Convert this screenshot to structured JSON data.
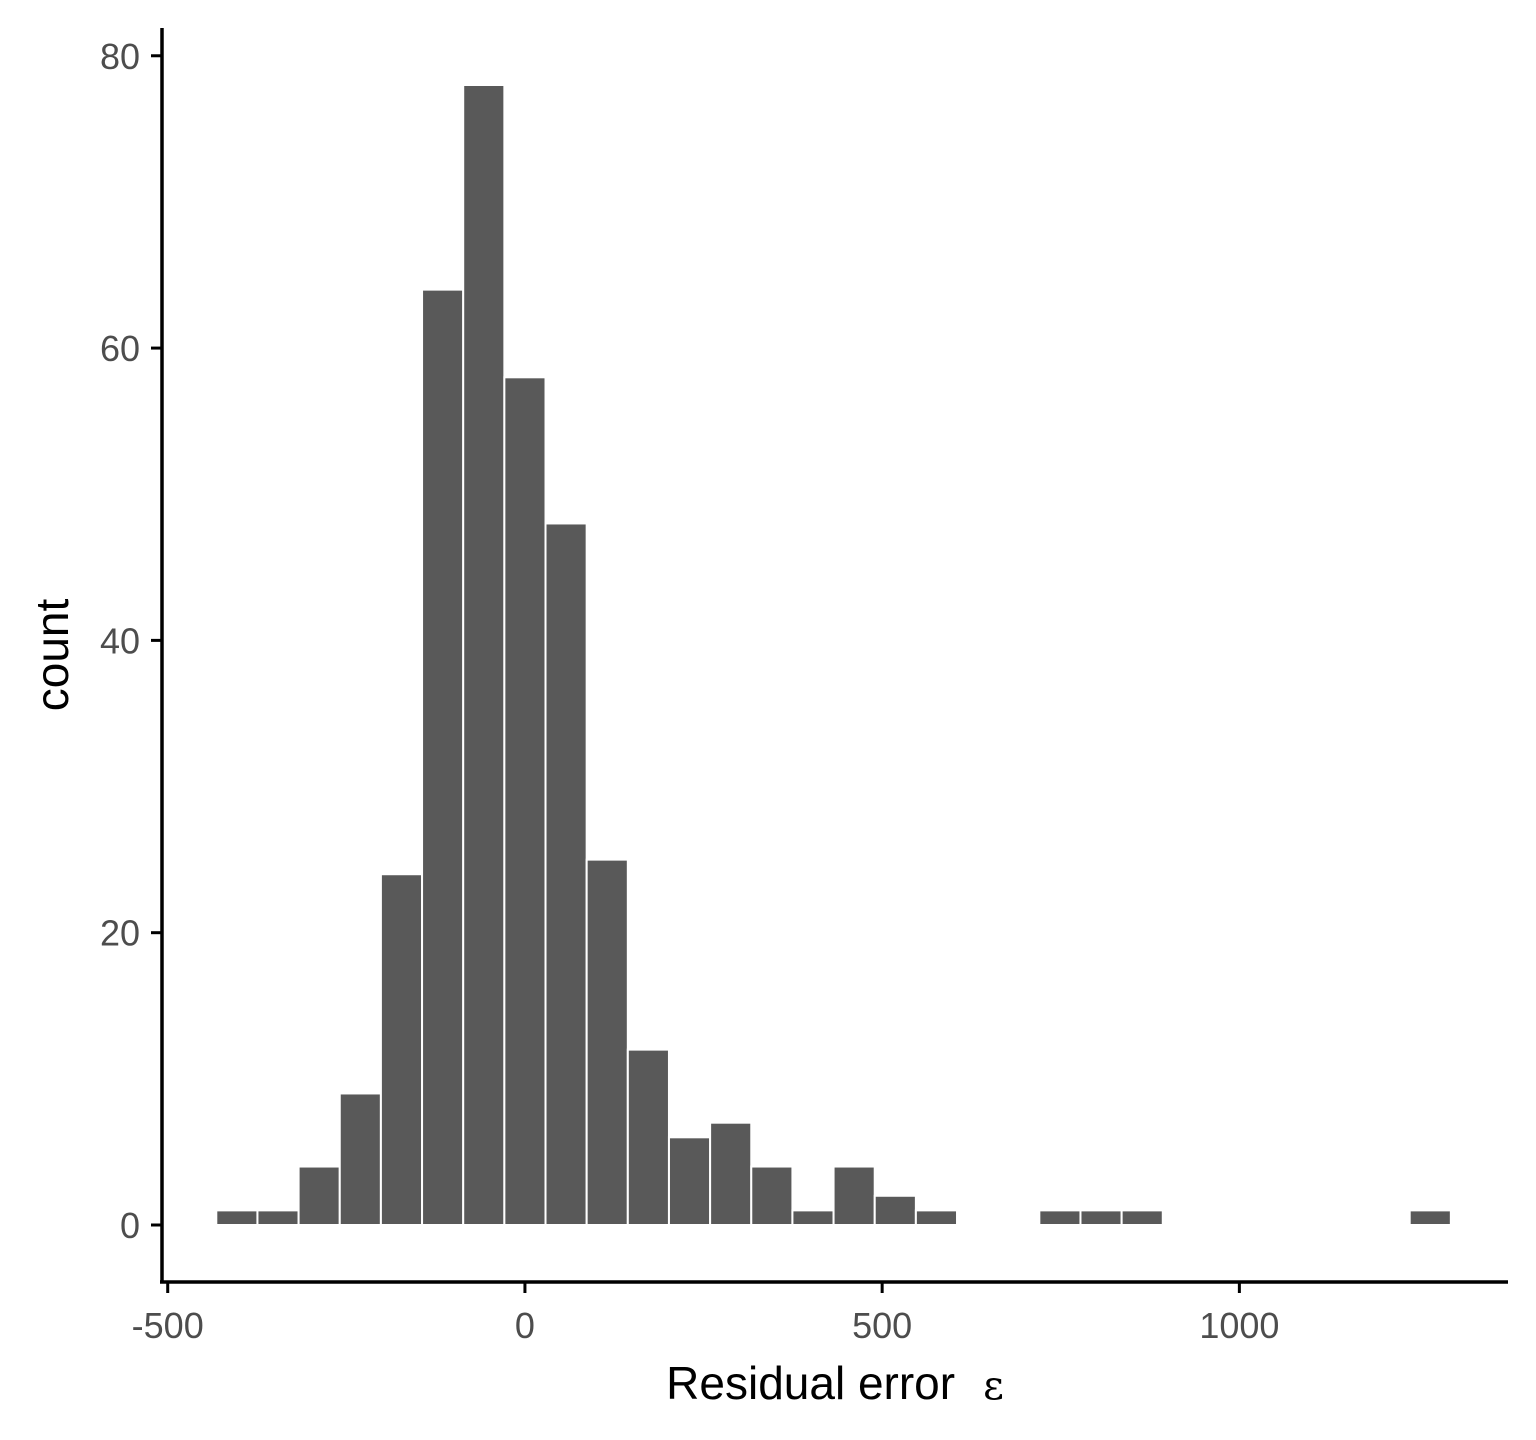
{
  "chart_data": {
    "type": "bar",
    "subtype": "histogram",
    "title": "",
    "xlabel": "Residual error",
    "xlabel_symbol": "ε",
    "ylabel": "count",
    "xlim": [
      -508,
      1376
    ],
    "ylim": [
      -3.9,
      81.9
    ],
    "x_ticks": [
      -500,
      0,
      500,
      1000
    ],
    "x_tick_labels": [
      "-500",
      "0",
      "500",
      "1000"
    ],
    "y_ticks": [
      0,
      20,
      40,
      60,
      80
    ],
    "y_tick_labels": [
      "0",
      "20",
      "40",
      "60",
      "80"
    ],
    "bin_width": 57.6,
    "bins": [
      {
        "x0": -432.0,
        "x1": -374.4,
        "count": 1
      },
      {
        "x0": -374.4,
        "x1": -316.8,
        "count": 1
      },
      {
        "x0": -316.8,
        "x1": -259.2,
        "count": 4
      },
      {
        "x0": -259.2,
        "x1": -201.6,
        "count": 9
      },
      {
        "x0": -201.6,
        "x1": -144.0,
        "count": 24
      },
      {
        "x0": -144.0,
        "x1": -86.4,
        "count": 64
      },
      {
        "x0": -86.4,
        "x1": -28.8,
        "count": 78
      },
      {
        "x0": -28.8,
        "x1": 28.8,
        "count": 58
      },
      {
        "x0": 28.8,
        "x1": 86.4,
        "count": 48
      },
      {
        "x0": 86.4,
        "x1": 144.0,
        "count": 25
      },
      {
        "x0": 144.0,
        "x1": 201.6,
        "count": 12
      },
      {
        "x0": 201.6,
        "x1": 259.2,
        "count": 6
      },
      {
        "x0": 259.2,
        "x1": 316.8,
        "count": 7
      },
      {
        "x0": 316.8,
        "x1": 374.4,
        "count": 4
      },
      {
        "x0": 374.4,
        "x1": 432.0,
        "count": 1
      },
      {
        "x0": 432.0,
        "x1": 489.6,
        "count": 4
      },
      {
        "x0": 489.6,
        "x1": 547.2,
        "count": 2
      },
      {
        "x0": 547.2,
        "x1": 604.8,
        "count": 1
      },
      {
        "x0": 604.8,
        "x1": 662.4,
        "count": 0
      },
      {
        "x0": 662.4,
        "x1": 720.0,
        "count": 0
      },
      {
        "x0": 720.0,
        "x1": 777.6,
        "count": 1
      },
      {
        "x0": 777.6,
        "x1": 835.2,
        "count": 1
      },
      {
        "x0": 835.2,
        "x1": 892.8,
        "count": 1
      },
      {
        "x0": 892.8,
        "x1": 950.4,
        "count": 0
      },
      {
        "x0": 950.4,
        "x1": 1008.0,
        "count": 0
      },
      {
        "x0": 1008.0,
        "x1": 1065.6,
        "count": 0
      },
      {
        "x0": 1065.6,
        "x1": 1123.2,
        "count": 0
      },
      {
        "x0": 1123.2,
        "x1": 1180.8,
        "count": 0
      },
      {
        "x0": 1180.8,
        "x1": 1238.4,
        "count": 0
      },
      {
        "x0": 1238.4,
        "x1": 1296.0,
        "count": 1
      }
    ],
    "grid": false,
    "legend": "none",
    "bar_color": "#595959",
    "bar_outline_color": "#ffffff",
    "axis_color": "#000000",
    "tick_label_color": "#4d4d4d"
  }
}
